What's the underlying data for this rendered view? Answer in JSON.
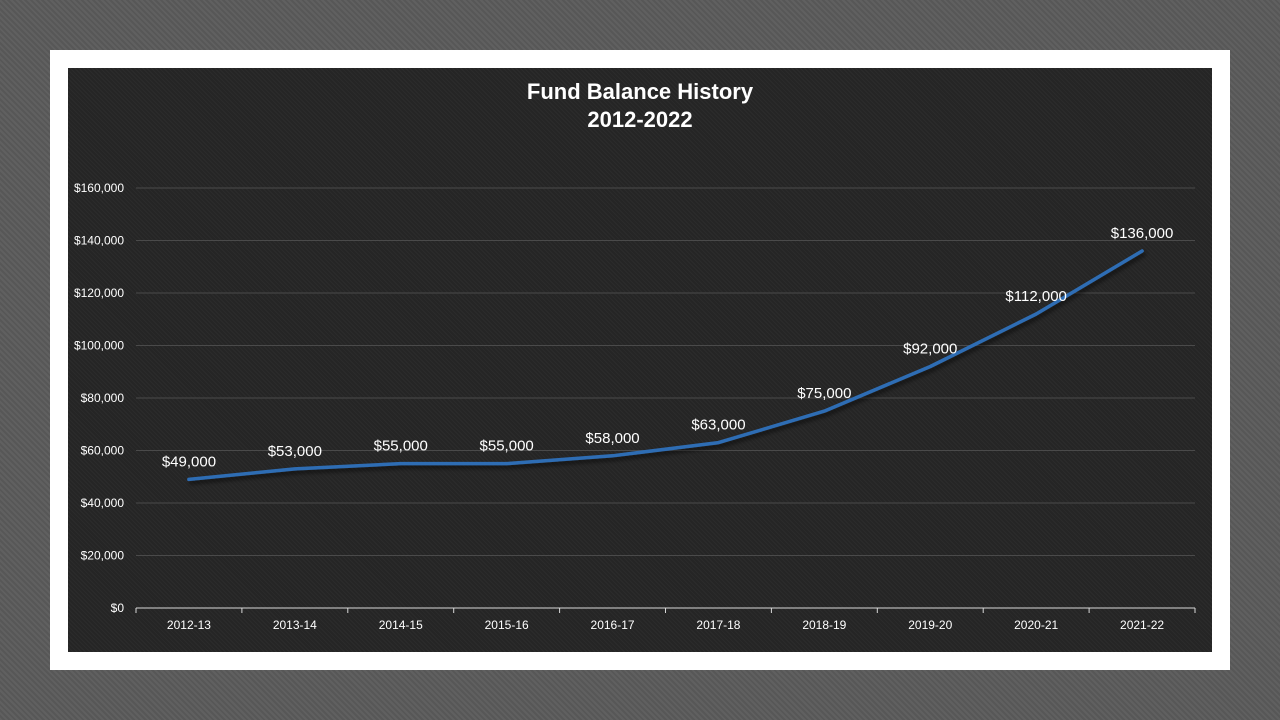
{
  "chart_data": {
    "type": "line",
    "title": "Fund Balance History",
    "subtitle": "2012-2022",
    "xlabel": "",
    "ylabel": "",
    "categories": [
      "2012-13",
      "2013-14",
      "2014-15",
      "2015-16",
      "2016-17",
      "2017-18",
      "2018-19",
      "2019-20",
      "2020-21",
      "2021-22"
    ],
    "series": [
      {
        "values": [
          49000,
          53000,
          55000,
          55000,
          58000,
          63000,
          75000,
          92000,
          112000,
          136000
        ],
        "data_labels": [
          "$49,000",
          "$53,000",
          "$55,000",
          "$55,000",
          "$58,000",
          "$63,000",
          "$75,000",
          "$92,000",
          "$112,000",
          "$136,000"
        ],
        "color": "#2e6db4"
      }
    ],
    "ylim": [
      0,
      160000
    ],
    "yticks": [
      0,
      20000,
      40000,
      60000,
      80000,
      100000,
      120000,
      140000,
      160000
    ],
    "ytick_labels": [
      "$0",
      "$20,000",
      "$40,000",
      "$60,000",
      "$80,000",
      "$100,000",
      "$120,000",
      "$140,000",
      "$160,000"
    ],
    "grid": true,
    "legend": "none",
    "colors": {
      "background": "#262626",
      "gridline": "#4a4a4a",
      "axis_line": "#d9d9d9",
      "text": "#ffffff",
      "line": "#2e6db4"
    }
  }
}
